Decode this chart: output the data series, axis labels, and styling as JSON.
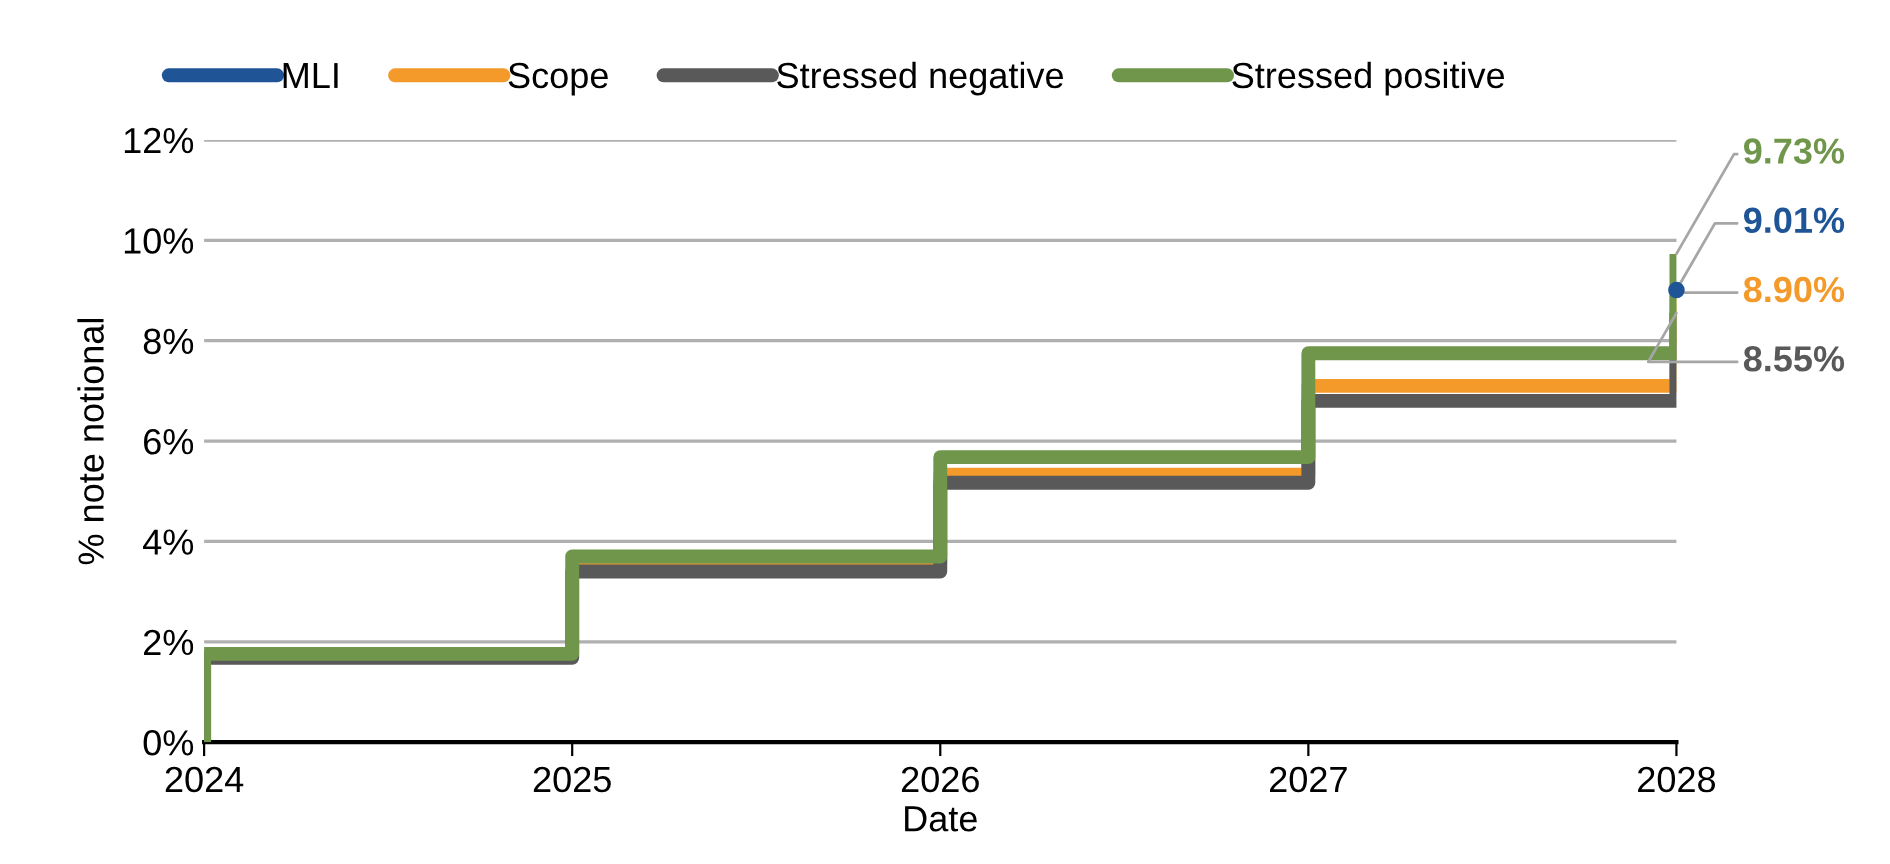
{
  "chart_data": {
    "type": "step",
    "xlabel": "Date",
    "ylabel": "% note notional",
    "x": [
      2024,
      2024,
      2025,
      2026,
      2027,
      2028
    ],
    "series": [
      {
        "name": "MLI",
        "color": "#1f5597",
        "marker": "circle",
        "values": [
          null,
          null,
          null,
          null,
          null,
          9.01
        ],
        "value_labels": [
          null,
          null,
          null,
          null,
          null,
          "9.01%"
        ]
      },
      {
        "name": "Scope",
        "color": "#f39a2b",
        "values": [
          null,
          null,
          3.55,
          5.33,
          7.1,
          8.9
        ],
        "value_labels": [
          null,
          null,
          null,
          null,
          null,
          "8.90%"
        ]
      },
      {
        "name": "Stressed negative",
        "color": "#595959",
        "values": [
          0,
          1.68,
          3.4,
          5.17,
          6.8,
          8.55
        ],
        "value_labels": [
          null,
          null,
          null,
          null,
          null,
          "8.55%"
        ]
      },
      {
        "name": "Stressed positive",
        "color": "#70964b",
        "values": [
          0,
          1.76,
          3.7,
          5.68,
          7.75,
          9.73
        ],
        "value_labels": [
          null,
          null,
          null,
          null,
          null,
          "9.73%"
        ]
      }
    ],
    "xlim": [
      2024,
      2028
    ],
    "xticks": [
      2024,
      2025,
      2026,
      2027,
      2028
    ],
    "ylim": [
      0,
      12
    ],
    "yticks": [
      {
        "value": 0,
        "label": "0%"
      },
      {
        "value": 2,
        "label": "2%"
      },
      {
        "value": 4,
        "label": "4%"
      },
      {
        "value": 6,
        "label": "6%"
      },
      {
        "value": 8,
        "label": "8%"
      },
      {
        "value": 10,
        "label": "10%"
      },
      {
        "value": 12,
        "label": "12%"
      }
    ],
    "grid": "y",
    "legend": "top"
  }
}
